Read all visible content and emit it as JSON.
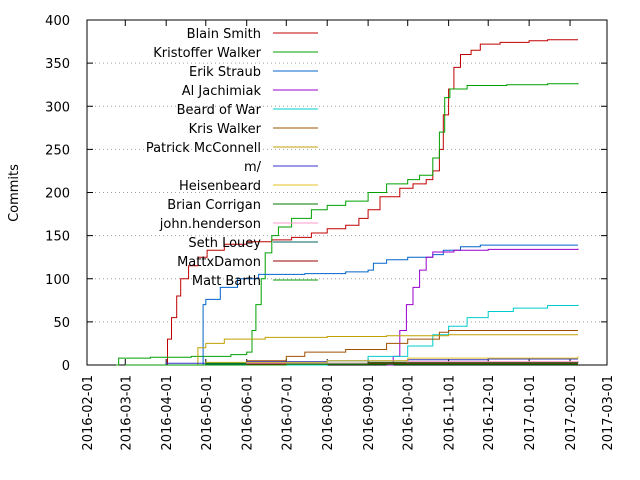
{
  "chart_data": {
    "type": "line",
    "title": "",
    "xlabel": "",
    "ylabel": "Commits",
    "xlim": [
      "2016-02-01",
      "2017-03-01"
    ],
    "ylim": [
      0,
      400
    ],
    "x_ticks": [
      "2016-02-01",
      "2016-03-01",
      "2016-04-01",
      "2016-05-01",
      "2016-06-01",
      "2016-07-01",
      "2016-08-01",
      "2016-09-01",
      "2016-10-01",
      "2016-11-01",
      "2016-12-01",
      "2017-01-01",
      "2017-02-01",
      "2017-03-01"
    ],
    "y_ticks": [
      0,
      50,
      100,
      150,
      200,
      250,
      300,
      350,
      400
    ],
    "grid": "horizontal dotted at y ticks",
    "legend": "top-left inside",
    "series": [
      {
        "name": "Blain Smith",
        "color": "#c00000",
        "points": [
          [
            "2016-03-29",
            0
          ],
          [
            "2016-04-02",
            30
          ],
          [
            "2016-04-05",
            55
          ],
          [
            "2016-04-09",
            80
          ],
          [
            "2016-04-12",
            100
          ],
          [
            "2016-04-18",
            115
          ],
          [
            "2016-04-25",
            125
          ],
          [
            "2016-05-02",
            133
          ],
          [
            "2016-05-15",
            140
          ],
          [
            "2016-06-01",
            143
          ],
          [
            "2016-06-20",
            145
          ],
          [
            "2016-07-05",
            148
          ],
          [
            "2016-07-20",
            153
          ],
          [
            "2016-08-01",
            158
          ],
          [
            "2016-08-15",
            162
          ],
          [
            "2016-08-25",
            170
          ],
          [
            "2016-09-01",
            180
          ],
          [
            "2016-09-10",
            195
          ],
          [
            "2016-09-25",
            205
          ],
          [
            "2016-10-05",
            210
          ],
          [
            "2016-10-15",
            215
          ],
          [
            "2016-10-20",
            225
          ],
          [
            "2016-10-25",
            250
          ],
          [
            "2016-10-28",
            290
          ],
          [
            "2016-11-01",
            320
          ],
          [
            "2016-11-05",
            345
          ],
          [
            "2016-11-10",
            360
          ],
          [
            "2016-11-18",
            365
          ],
          [
            "2016-11-25",
            372
          ],
          [
            "2016-12-10",
            374
          ],
          [
            "2017-01-01",
            376
          ],
          [
            "2017-01-15",
            377
          ],
          [
            "2017-02-07",
            377
          ]
        ]
      },
      {
        "name": "Kristoffer Walker",
        "color": "#00a000",
        "points": [
          [
            "2016-02-23",
            0
          ],
          [
            "2016-02-25",
            8
          ],
          [
            "2016-03-20",
            9
          ],
          [
            "2016-04-20",
            10
          ],
          [
            "2016-05-20",
            12
          ],
          [
            "2016-06-01",
            15
          ],
          [
            "2016-06-05",
            40
          ],
          [
            "2016-06-08",
            70
          ],
          [
            "2016-06-12",
            100
          ],
          [
            "2016-06-15",
            130
          ],
          [
            "2016-06-20",
            150
          ],
          [
            "2016-06-25",
            160
          ],
          [
            "2016-07-05",
            170
          ],
          [
            "2016-07-20",
            180
          ],
          [
            "2016-08-01",
            185
          ],
          [
            "2016-08-15",
            190
          ],
          [
            "2016-09-01",
            200
          ],
          [
            "2016-09-15",
            210
          ],
          [
            "2016-10-01",
            215
          ],
          [
            "2016-10-10",
            220
          ],
          [
            "2016-10-20",
            240
          ],
          [
            "2016-10-25",
            270
          ],
          [
            "2016-10-29",
            310
          ],
          [
            "2016-11-02",
            320
          ],
          [
            "2016-11-15",
            324
          ],
          [
            "2016-12-15",
            325
          ],
          [
            "2017-01-15",
            326
          ],
          [
            "2017-02-07",
            327
          ]
        ]
      },
      {
        "name": "Erik Straub",
        "color": "#0066cc",
        "points": [
          [
            "2016-04-25",
            0
          ],
          [
            "2016-04-29",
            70
          ],
          [
            "2016-05-01",
            76
          ],
          [
            "2016-05-12",
            90
          ],
          [
            "2016-05-25",
            100
          ],
          [
            "2016-06-10",
            105
          ],
          [
            "2016-07-15",
            106
          ],
          [
            "2016-08-15",
            108
          ],
          [
            "2016-09-01",
            110
          ],
          [
            "2016-09-05",
            118
          ],
          [
            "2016-09-15",
            122
          ],
          [
            "2016-10-01",
            125
          ],
          [
            "2016-10-20",
            128
          ],
          [
            "2016-10-28",
            133
          ],
          [
            "2016-11-10",
            137
          ],
          [
            "2016-11-25",
            139
          ],
          [
            "2017-02-07",
            139
          ]
        ]
      },
      {
        "name": "Al Jachimiak",
        "color": "#9900cc",
        "points": [
          [
            "2016-09-15",
            0
          ],
          [
            "2016-09-20",
            10
          ],
          [
            "2016-09-25",
            40
          ],
          [
            "2016-09-30",
            70
          ],
          [
            "2016-10-05",
            90
          ],
          [
            "2016-10-10",
            110
          ],
          [
            "2016-10-15",
            125
          ],
          [
            "2016-10-20",
            131
          ],
          [
            "2016-11-05",
            133
          ],
          [
            "2016-12-01",
            134
          ],
          [
            "2017-02-07",
            135
          ]
        ]
      },
      {
        "name": "Beard of War",
        "color": "#00cccc",
        "points": [
          [
            "2016-07-01",
            0
          ],
          [
            "2016-08-01",
            5
          ],
          [
            "2016-09-01",
            10
          ],
          [
            "2016-10-01",
            22
          ],
          [
            "2016-10-20",
            35
          ],
          [
            "2016-11-01",
            45
          ],
          [
            "2016-11-15",
            55
          ],
          [
            "2016-12-01",
            62
          ],
          [
            "2016-12-20",
            66
          ],
          [
            "2017-01-15",
            69
          ],
          [
            "2017-02-07",
            70
          ]
        ]
      },
      {
        "name": "Kris Walker",
        "color": "#a05000",
        "points": [
          [
            "2016-05-01",
            0
          ],
          [
            "2016-06-01",
            5
          ],
          [
            "2016-07-01",
            10
          ],
          [
            "2016-07-15",
            15
          ],
          [
            "2016-08-15",
            18
          ],
          [
            "2016-09-15",
            25
          ],
          [
            "2016-10-01",
            30
          ],
          [
            "2016-10-25",
            38
          ],
          [
            "2016-11-01",
            40
          ],
          [
            "2017-02-07",
            40
          ]
        ]
      },
      {
        "name": "Patrick McConnell",
        "color": "#c0a000",
        "points": [
          [
            "2016-04-20",
            0
          ],
          [
            "2016-04-25",
            20
          ],
          [
            "2016-05-01",
            25
          ],
          [
            "2016-05-15",
            30
          ],
          [
            "2016-06-15",
            32
          ],
          [
            "2016-08-01",
            33
          ],
          [
            "2016-09-15",
            34
          ],
          [
            "2016-11-01",
            35
          ],
          [
            "2017-02-07",
            35
          ]
        ]
      },
      {
        "name": "m/",
        "color": "#3333cc",
        "points": [
          [
            "2016-03-01",
            0
          ],
          [
            "2016-04-01",
            2
          ],
          [
            "2016-06-01",
            4
          ],
          [
            "2016-08-01",
            5
          ],
          [
            "2016-10-01",
            6
          ],
          [
            "2016-12-01",
            7
          ],
          [
            "2017-02-07",
            7
          ]
        ]
      },
      {
        "name": "Heisenbeard",
        "color": "#e0c020",
        "points": [
          [
            "2016-03-01",
            0
          ],
          [
            "2016-05-01",
            3
          ],
          [
            "2016-08-01",
            5
          ],
          [
            "2016-10-01",
            8
          ],
          [
            "2017-02-07",
            10
          ]
        ]
      },
      {
        "name": "Brian Corrigan",
        "color": "#007700",
        "points": [
          [
            "2016-03-01",
            0
          ],
          [
            "2016-05-01",
            2
          ],
          [
            "2016-09-01",
            3
          ],
          [
            "2017-02-07",
            4
          ]
        ]
      },
      {
        "name": "john.henderson",
        "color": "#ff99cc",
        "points": [
          [
            "2016-03-01",
            0
          ],
          [
            "2016-06-01",
            2
          ],
          [
            "2016-10-01",
            4
          ],
          [
            "2017-02-07",
            5
          ]
        ]
      },
      {
        "name": "Seth Louey",
        "color": "#006666",
        "points": [
          [
            "2016-03-01",
            0
          ],
          [
            "2016-05-01",
            1
          ],
          [
            "2016-09-01",
            2
          ],
          [
            "2017-02-07",
            2
          ]
        ]
      },
      {
        "name": "MattxDamon",
        "color": "#990000",
        "points": [
          [
            "2016-04-01",
            0
          ],
          [
            "2016-06-01",
            1
          ],
          [
            "2016-09-01",
            2
          ],
          [
            "2017-02-07",
            2
          ]
        ]
      },
      {
        "name": "Matt Barth",
        "color": "#009900",
        "points": [
          [
            "2016-03-01",
            0
          ],
          [
            "2016-07-01",
            1
          ],
          [
            "2017-02-07",
            1
          ]
        ]
      }
    ]
  }
}
